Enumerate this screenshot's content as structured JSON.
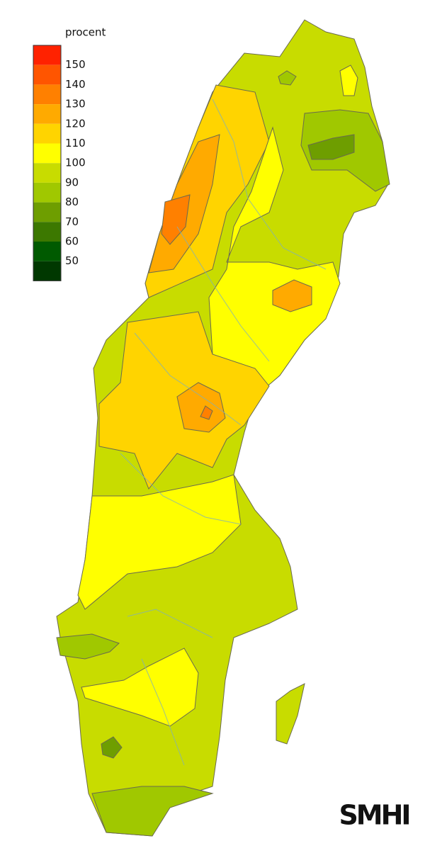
{
  "legend": {
    "title": "procent",
    "labels": [
      150,
      140,
      130,
      120,
      110,
      100,
      90,
      80,
      70,
      60,
      50
    ],
    "colors": [
      "#ff2200",
      "#ff5500",
      "#ff8000",
      "#ffaa00",
      "#ffd400",
      "#ffff00",
      "#c8dc00",
      "#a0c800",
      "#6e9e00",
      "#3c7800",
      "#005a00",
      "#003800"
    ]
  },
  "logo": "SMHI"
}
